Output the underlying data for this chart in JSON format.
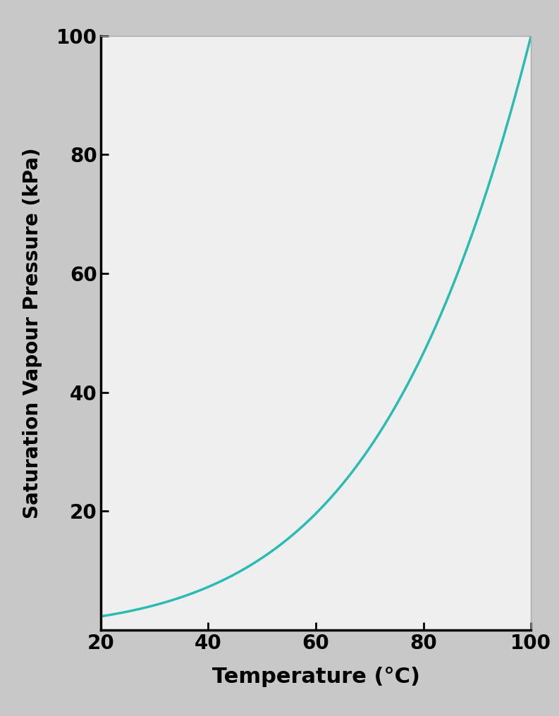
{
  "title": "",
  "xlabel": "Temperature (°C)",
  "ylabel": "Saturation Vapour Pressure (kPa)",
  "xlim": [
    20,
    100
  ],
  "ylim": [
    0,
    100
  ],
  "xticks": [
    20,
    40,
    60,
    80,
    100
  ],
  "yticks": [
    20,
    40,
    60,
    80,
    100
  ],
  "line_color": "#2abcb4",
  "line_width": 2.5,
  "background_color": "#c8c8c8",
  "plot_bg_color": "#efefef",
  "xlabel_fontsize": 22,
  "ylabel_fontsize": 20,
  "tick_fontsize": 20,
  "tick_fontweight": "bold",
  "label_fontweight": "bold",
  "fig_width": 7.93,
  "fig_height": 10.16,
  "dpi": 100
}
